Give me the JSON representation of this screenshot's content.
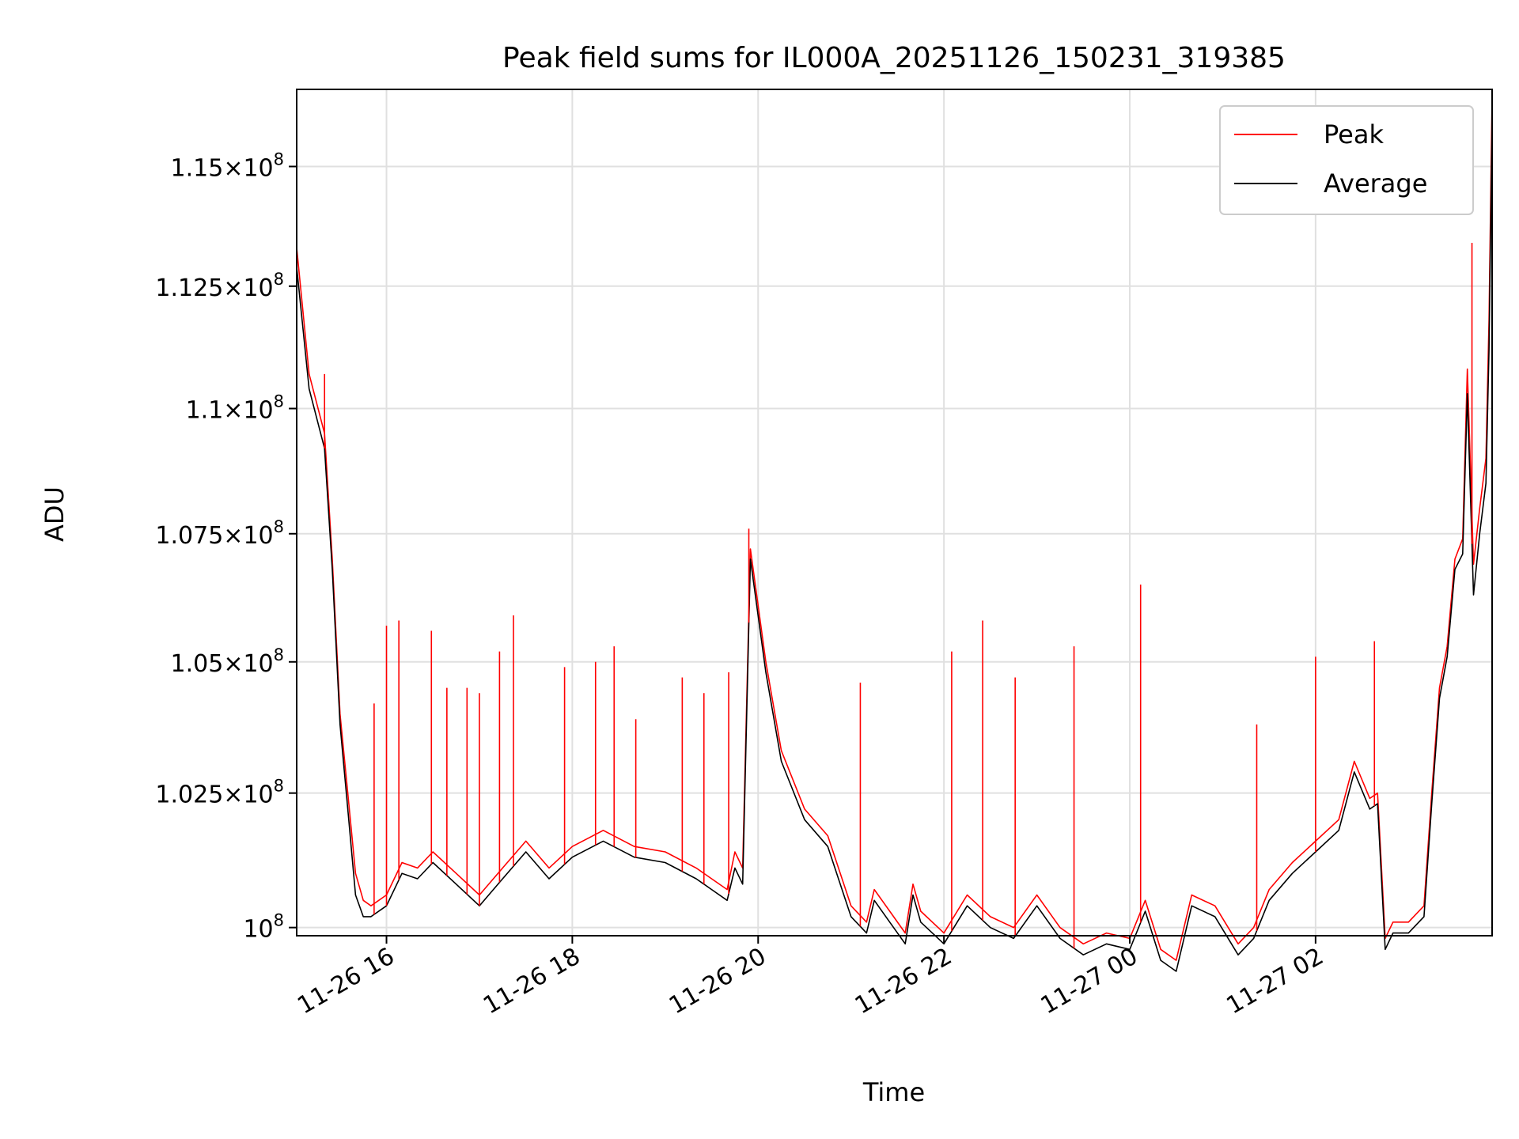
{
  "chart_data": {
    "type": "line",
    "title": "Peak field sums for IL000A_20251126_150231_319385",
    "xlabel": "Time",
    "ylabel": "ADU",
    "x_range": [
      "2025-11-26 15:02",
      "2025-11-27 03:54"
    ],
    "ylim": [
      99850000.0,
      116640000.0
    ],
    "yscale": "log",
    "grid": true,
    "legend_position": "top-right",
    "x_ticks": [
      {
        "t": "2025-11-26 16:00",
        "label": "11-26 16"
      },
      {
        "t": "2025-11-26 18:00",
        "label": "11-26 18"
      },
      {
        "t": "2025-11-26 20:00",
        "label": "11-26 20"
      },
      {
        "t": "2025-11-26 22:00",
        "label": "11-26 22"
      },
      {
        "t": "2025-11-27 00:00",
        "label": "11-27 00"
      },
      {
        "t": "2025-11-27 02:00",
        "label": "11-27 02"
      }
    ],
    "y_ticks": [
      {
        "value": 100000000.0,
        "mantissa": "",
        "base": "10",
        "exp": "8"
      },
      {
        "value": 102500000.0,
        "mantissa": "1.025",
        "base": "10",
        "exp": "8"
      },
      {
        "value": 105000000.0,
        "mantissa": "1.05",
        "base": "10",
        "exp": "8"
      },
      {
        "value": 107500000.0,
        "mantissa": "1.075",
        "base": "10",
        "exp": "8"
      },
      {
        "value": 110000000.0,
        "mantissa": "1.1",
        "base": "10",
        "exp": "8"
      },
      {
        "value": 112500000.0,
        "mantissa": "1.125",
        "base": "10",
        "exp": "8"
      },
      {
        "value": 115000000.0,
        "mantissa": "1.15",
        "base": "10",
        "exp": "8"
      }
    ],
    "series": [
      {
        "name": "Peak",
        "color": "#ff0000",
        "x": [
          "2025-11-26 15:02",
          "2025-11-26 15:10",
          "2025-11-26 15:20",
          "2025-11-26 15:25",
          "2025-11-26 15:30",
          "2025-11-26 15:35",
          "2025-11-26 15:40",
          "2025-11-26 15:45",
          "2025-11-26 15:50",
          "2025-11-26 16:00",
          "2025-11-26 16:10",
          "2025-11-26 16:20",
          "2025-11-26 16:30",
          "2025-11-26 16:45",
          "2025-11-26 17:00",
          "2025-11-26 17:15",
          "2025-11-26 17:30",
          "2025-11-26 17:45",
          "2025-11-26 18:00",
          "2025-11-26 18:20",
          "2025-11-26 18:40",
          "2025-11-26 19:00",
          "2025-11-26 19:20",
          "2025-11-26 19:30",
          "2025-11-26 19:40",
          "2025-11-26 19:45",
          "2025-11-26 19:50",
          "2025-11-26 19:55",
          "2025-11-26 20:05",
          "2025-11-26 20:15",
          "2025-11-26 20:30",
          "2025-11-26 20:45",
          "2025-11-26 21:00",
          "2025-11-26 21:10",
          "2025-11-26 21:15",
          "2025-11-26 21:25",
          "2025-11-26 21:35",
          "2025-11-26 21:40",
          "2025-11-26 21:45",
          "2025-11-26 22:00",
          "2025-11-26 22:15",
          "2025-11-26 22:30",
          "2025-11-26 22:45",
          "2025-11-26 23:00",
          "2025-11-26 23:15",
          "2025-11-26 23:30",
          "2025-11-26 23:45",
          "2025-11-27 00:00",
          "2025-11-27 00:10",
          "2025-11-27 00:20",
          "2025-11-27 00:30",
          "2025-11-27 00:40",
          "2025-11-27 00:55",
          "2025-11-27 01:10",
          "2025-11-27 01:20",
          "2025-11-27 01:30",
          "2025-11-27 01:45",
          "2025-11-27 02:00",
          "2025-11-27 02:15",
          "2025-11-27 02:25",
          "2025-11-27 02:35",
          "2025-11-27 02:40",
          "2025-11-27 02:45",
          "2025-11-27 02:50",
          "2025-11-27 03:00",
          "2025-11-27 03:10",
          "2025-11-27 03:15",
          "2025-11-27 03:20",
          "2025-11-27 03:25",
          "2025-11-27 03:30",
          "2025-11-27 03:35",
          "2025-11-27 03:38",
          "2025-11-27 03:42",
          "2025-11-27 03:46",
          "2025-11-27 03:50",
          "2025-11-27 03:52",
          "2025-11-27 03:54"
        ],
        "y": [
          113300000.0,
          110700000.0,
          109500000.0,
          107000000.0,
          104000000.0,
          102500000.0,
          101000000.0,
          100500000.0,
          100400000.0,
          100600000.0,
          101200000.0,
          101100000.0,
          101400000.0,
          101000000.0,
          100600000.0,
          101100000.0,
          101600000.0,
          101100000.0,
          101500000.0,
          101800000.0,
          101500000.0,
          101400000.0,
          101100000.0,
          100900000.0,
          100700000.0,
          101400000.0,
          101100000.0,
          107200000.0,
          105000000.0,
          103300000.0,
          102200000.0,
          101700000.0,
          100400000.0,
          100100000.0,
          100700000.0,
          100300000.0,
          99900000.0,
          100800000.0,
          100300000.0,
          99900000.0,
          100600000.0,
          100200000.0,
          100000000.0,
          100600000.0,
          100000000.0,
          99700000.0,
          99900000.0,
          99800000.0,
          100500000.0,
          99600000.0,
          99400000.0,
          100600000.0,
          100400000.0,
          99700000.0,
          100000000.0,
          100700000.0,
          101200000.0,
          101600000.0,
          102000000.0,
          103100000.0,
          102400000.0,
          102500000.0,
          99800000.0,
          100100000.0,
          100100000.0,
          100400000.0,
          102500000.0,
          104500000.0,
          105300000.0,
          107000000.0,
          107400000.0,
          110800000.0,
          106900000.0,
          108000000.0,
          109000000.0,
          111800000.0,
          116500000.0
        ]
      },
      {
        "name": "Average",
        "color": "#000000",
        "x": [
          "2025-11-26 15:02",
          "2025-11-26 15:10",
          "2025-11-26 15:20",
          "2025-11-26 15:25",
          "2025-11-26 15:30",
          "2025-11-26 15:35",
          "2025-11-26 15:40",
          "2025-11-26 15:45",
          "2025-11-26 15:50",
          "2025-11-26 16:00",
          "2025-11-26 16:10",
          "2025-11-26 16:20",
          "2025-11-26 16:30",
          "2025-11-26 16:45",
          "2025-11-26 17:00",
          "2025-11-26 17:15",
          "2025-11-26 17:30",
          "2025-11-26 17:45",
          "2025-11-26 18:00",
          "2025-11-26 18:20",
          "2025-11-26 18:40",
          "2025-11-26 19:00",
          "2025-11-26 19:20",
          "2025-11-26 19:30",
          "2025-11-26 19:40",
          "2025-11-26 19:45",
          "2025-11-26 19:50",
          "2025-11-26 19:55",
          "2025-11-26 20:05",
          "2025-11-26 20:15",
          "2025-11-26 20:30",
          "2025-11-26 20:45",
          "2025-11-26 21:00",
          "2025-11-26 21:10",
          "2025-11-26 21:15",
          "2025-11-26 21:25",
          "2025-11-26 21:35",
          "2025-11-26 21:40",
          "2025-11-26 21:45",
          "2025-11-26 22:00",
          "2025-11-26 22:15",
          "2025-11-26 22:30",
          "2025-11-26 22:45",
          "2025-11-26 23:00",
          "2025-11-26 23:15",
          "2025-11-26 23:30",
          "2025-11-26 23:45",
          "2025-11-27 00:00",
          "2025-11-27 00:10",
          "2025-11-27 00:20",
          "2025-11-27 00:30",
          "2025-11-27 00:40",
          "2025-11-27 00:55",
          "2025-11-27 01:10",
          "2025-11-27 01:20",
          "2025-11-27 01:30",
          "2025-11-27 01:45",
          "2025-11-27 02:00",
          "2025-11-27 02:15",
          "2025-11-27 02:25",
          "2025-11-27 02:35",
          "2025-11-27 02:40",
          "2025-11-27 02:45",
          "2025-11-27 02:50",
          "2025-11-27 03:00",
          "2025-11-27 03:10",
          "2025-11-27 03:15",
          "2025-11-27 03:20",
          "2025-11-27 03:25",
          "2025-11-27 03:30",
          "2025-11-27 03:35",
          "2025-11-27 03:38",
          "2025-11-27 03:42",
          "2025-11-27 03:46",
          "2025-11-27 03:50",
          "2025-11-27 03:52",
          "2025-11-27 03:54"
        ],
        "y": [
          112900000.0,
          110400000.0,
          109200000.0,
          106800000.0,
          103800000.0,
          102200000.0,
          100600000.0,
          100200000.0,
          100200000.0,
          100400000.0,
          101000000.0,
          100900000.0,
          101200000.0,
          100800000.0,
          100400000.0,
          100900000.0,
          101400000.0,
          100900000.0,
          101300000.0,
          101600000.0,
          101300000.0,
          101200000.0,
          100900000.0,
          100700000.0,
          100500000.0,
          101100000.0,
          100800000.0,
          107000000.0,
          104800000.0,
          103100000.0,
          102000000.0,
          101500000.0,
          100200000.0,
          99900000.0,
          100500000.0,
          100100000.0,
          99700000.0,
          100600000.0,
          100100000.0,
          99700000.0,
          100400000.0,
          100000000.0,
          99800000.0,
          100400000.0,
          99800000.0,
          99500000.0,
          99700000.0,
          99600000.0,
          100300000.0,
          99400000.0,
          99200000.0,
          100400000.0,
          100200000.0,
          99500000.0,
          99800000.0,
          100500000.0,
          101000000.0,
          101400000.0,
          101800000.0,
          102900000.0,
          102200000.0,
          102300000.0,
          99600000.0,
          99900000.0,
          99900000.0,
          100200000.0,
          102300000.0,
          104300000.0,
          105100000.0,
          106800000.0,
          107100000.0,
          110300000.0,
          106300000.0,
          107500000.0,
          108500000.0,
          111200000.0,
          116000000.0
        ]
      }
    ],
    "peak_spikes": [
      {
        "t": "2025-11-26 15:20",
        "y": 110700000.0
      },
      {
        "t": "2025-11-26 15:52",
        "y": 104200000.0
      },
      {
        "t": "2025-11-26 16:00",
        "y": 105700000.0
      },
      {
        "t": "2025-11-26 16:08",
        "y": 105800000.0
      },
      {
        "t": "2025-11-26 16:29",
        "y": 105600000.0
      },
      {
        "t": "2025-11-26 16:39",
        "y": 104500000.0
      },
      {
        "t": "2025-11-26 16:52",
        "y": 104500000.0
      },
      {
        "t": "2025-11-26 17:00",
        "y": 104400000.0
      },
      {
        "t": "2025-11-26 17:13",
        "y": 105200000.0
      },
      {
        "t": "2025-11-26 17:22",
        "y": 105900000.0
      },
      {
        "t": "2025-11-26 17:55",
        "y": 104900000.0
      },
      {
        "t": "2025-11-26 18:15",
        "y": 105000000.0
      },
      {
        "t": "2025-11-26 18:27",
        "y": 105300000.0
      },
      {
        "t": "2025-11-26 18:41",
        "y": 103900000.0
      },
      {
        "t": "2025-11-26 19:11",
        "y": 104700000.0
      },
      {
        "t": "2025-11-26 19:25",
        "y": 104400000.0
      },
      {
        "t": "2025-11-26 19:41",
        "y": 104800000.0
      },
      {
        "t": "2025-11-26 19:54",
        "y": 107600000.0
      },
      {
        "t": "2025-11-26 21:06",
        "y": 104600000.0
      },
      {
        "t": "2025-11-26 22:05",
        "y": 105200000.0
      },
      {
        "t": "2025-11-26 22:25",
        "y": 105800000.0
      },
      {
        "t": "2025-11-26 22:46",
        "y": 104700000.0
      },
      {
        "t": "2025-11-26 23:24",
        "y": 105300000.0
      },
      {
        "t": "2025-11-27 00:07",
        "y": 106500000.0
      },
      {
        "t": "2025-11-27 01:22",
        "y": 103800000.0
      },
      {
        "t": "2025-11-27 02:00",
        "y": 105100000.0
      },
      {
        "t": "2025-11-27 02:38",
        "y": 105400000.0
      },
      {
        "t": "2025-11-27 03:41",
        "y": 113400000.0
      }
    ],
    "legend": [
      {
        "label": "Peak",
        "color": "#ff0000"
      },
      {
        "label": "Average",
        "color": "#000000"
      }
    ]
  }
}
